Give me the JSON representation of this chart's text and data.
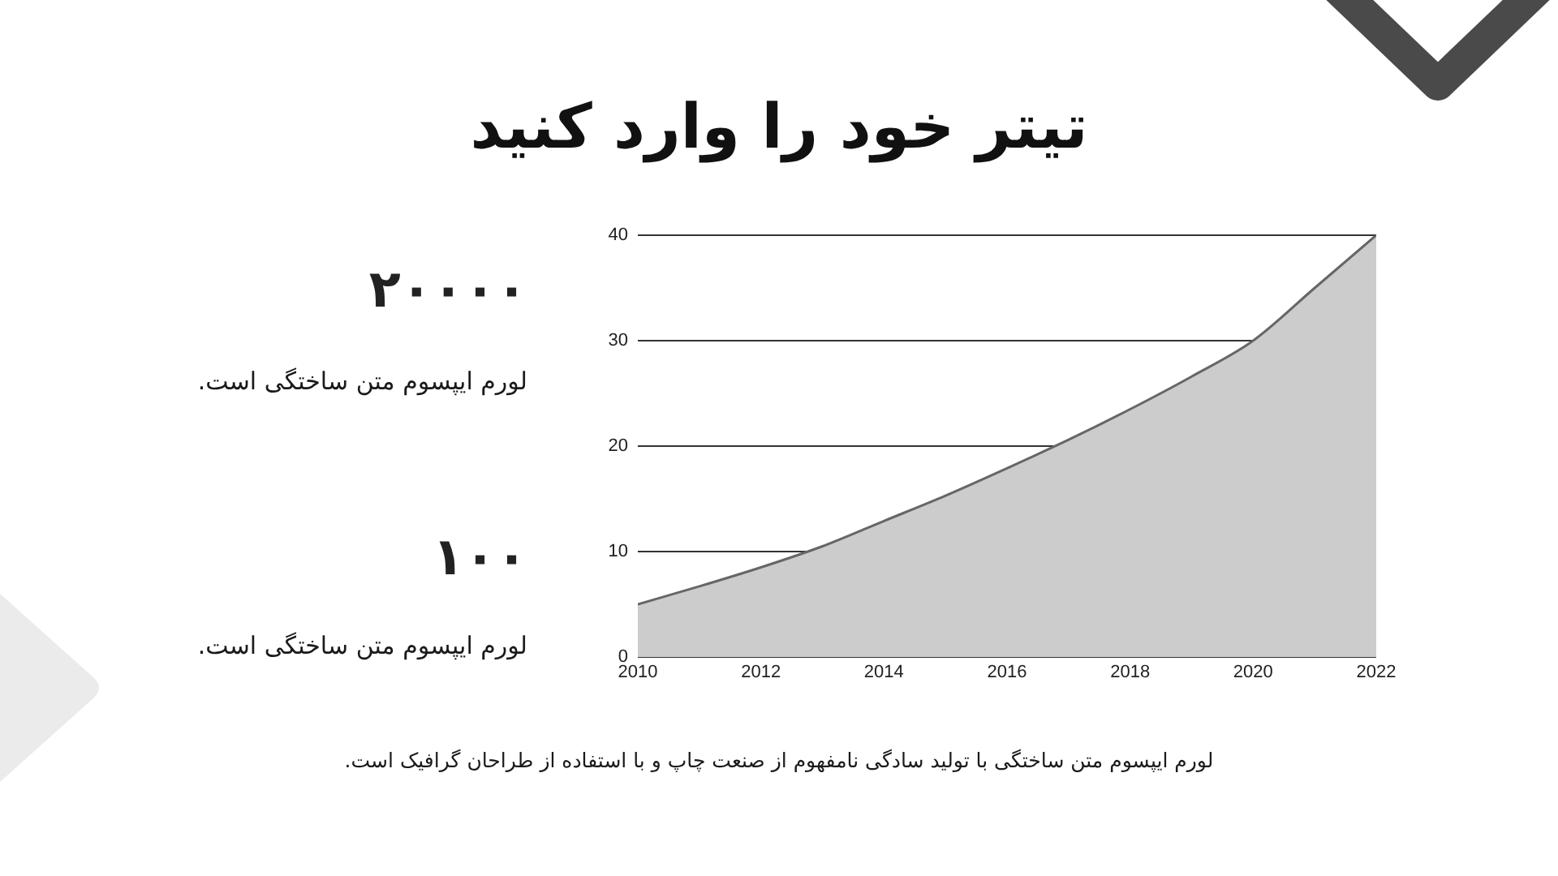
{
  "chart_data": {
    "type": "area",
    "title": "تیتر خود را وارد کنید",
    "annotations": [
      "۲۰۰۰۰",
      "لورم ایپسوم متن ساختگی است.",
      "۱۰۰",
      "لورم ایپسوم متن ساختگی است.",
      "لورم ایپسوم متن ساختگی با تولید سادگی نامفهوم از صنعت چاپ و با استفاده از طراحان گرافیک است."
    ],
    "x": [
      2010,
      2011,
      2012,
      2013,
      2014,
      2015,
      2016,
      2017,
      2018,
      2019,
      2020,
      2021,
      2022
    ],
    "values": [
      5,
      6.7,
      8.5,
      10.5,
      12.9,
      15.3,
      17.9,
      20.6,
      23.5,
      26.6,
      30,
      35,
      40
    ],
    "color": "#cccccc",
    "xlim": [
      2010,
      2022
    ],
    "xticks": [
      2010,
      2012,
      2014,
      2016,
      2018,
      2020,
      2022
    ],
    "ylim": [
      0,
      40
    ],
    "yticks": [
      0,
      10,
      20,
      30,
      40
    ],
    "grid": "y",
    "marker": "none"
  }
}
